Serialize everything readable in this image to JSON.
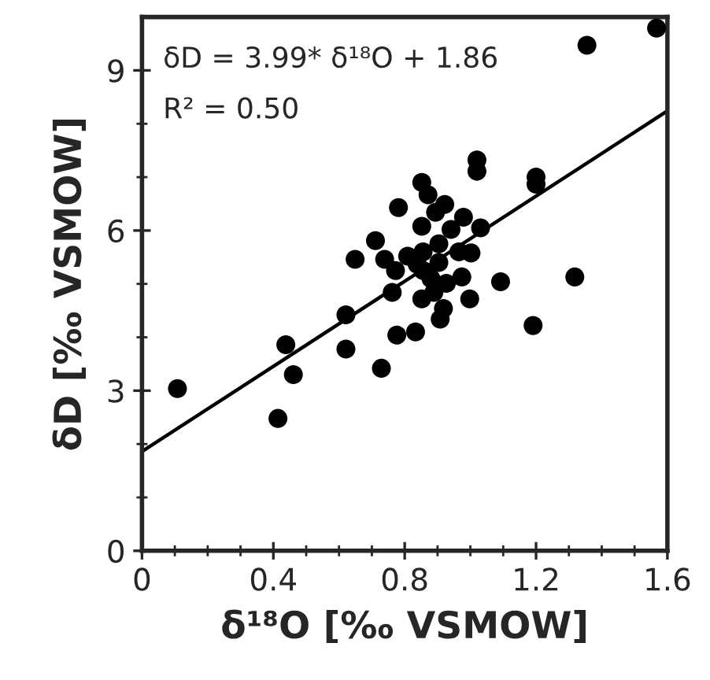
{
  "chart_data": {
    "type": "scatter",
    "xlabel": "δ¹⁸O [‰ VSMOW]",
    "ylabel": "δD [‰ VSMOW]",
    "annotations": [
      "δD = 3.99* δ¹⁸O + 1.86",
      "R² = 0.50"
    ],
    "xlim": [
      0,
      1.6
    ],
    "ylim": [
      0,
      10
    ],
    "xticks": [
      0,
      {
        "value": 0.1,
        "label": null
      },
      {
        "value": 0.2,
        "label": null
      },
      {
        "value": 0.3,
        "label": null
      },
      0.4,
      {
        "value": 0.5,
        "label": null
      },
      {
        "value": 0.6,
        "label": null
      },
      {
        "value": 0.7,
        "label": null
      },
      0.8,
      {
        "value": 0.9,
        "label": null
      },
      {
        "value": 1.0,
        "label": null
      },
      {
        "value": 1.1,
        "label": null
      },
      1.2,
      {
        "value": 1.3,
        "label": null
      },
      {
        "value": 1.4,
        "label": null
      },
      {
        "value": 1.5,
        "label": null
      },
      1.6
    ],
    "yticks": [
      0,
      {
        "value": 1,
        "label": null
      },
      {
        "value": 2,
        "label": null
      },
      3,
      {
        "value": 4,
        "label": null
      },
      {
        "value": 5,
        "label": null
      },
      6,
      {
        "value": 7,
        "label": null
      },
      {
        "value": 8,
        "label": null
      },
      9
    ],
    "grid": false,
    "legend": false,
    "marker": "circle",
    "series": [
      {
        "color": "#000000",
        "x": [
          1.567,
          1.355,
          1.02,
          1.02,
          1.2,
          1.2,
          0.852,
          0.871,
          0.922,
          0.894,
          0.979,
          0.781,
          0.852,
          0.941,
          1.031,
          0.711,
          0.649,
          0.739,
          0.772,
          0.809,
          0.856,
          0.904,
          0.965,
          1.002,
          0.838,
          0.904,
          1.092,
          1.318,
          0.762,
          0.852,
          0.889,
          0.927,
          0.974,
          0.998,
          0.918,
          0.908,
          0.776,
          0.833,
          0.621,
          0.621,
          0.729,
          1.191,
          0.438,
          0.461,
          0.414,
          0.108,
          0.88,
          0.856
        ],
        "values": [
          9.79,
          9.47,
          7.32,
          7.11,
          7.0,
          6.87,
          6.9,
          6.67,
          6.49,
          6.34,
          6.25,
          6.43,
          6.08,
          6.02,
          6.05,
          5.81,
          5.46,
          5.46,
          5.25,
          5.52,
          5.6,
          5.75,
          5.6,
          5.58,
          5.37,
          5.4,
          5.04,
          5.13,
          4.84,
          4.72,
          4.84,
          5.01,
          5.13,
          4.72,
          4.54,
          4.34,
          4.04,
          4.1,
          4.42,
          3.78,
          3.42,
          4.22,
          3.86,
          3.3,
          2.48,
          3.04,
          5.1,
          5.25
        ]
      },
      {
        "type": "line",
        "color": "#000000",
        "x": [
          0,
          1.6
        ],
        "values": [
          1.86,
          8.24
        ],
        "marker": "none",
        "line_style": "solid"
      }
    ]
  }
}
